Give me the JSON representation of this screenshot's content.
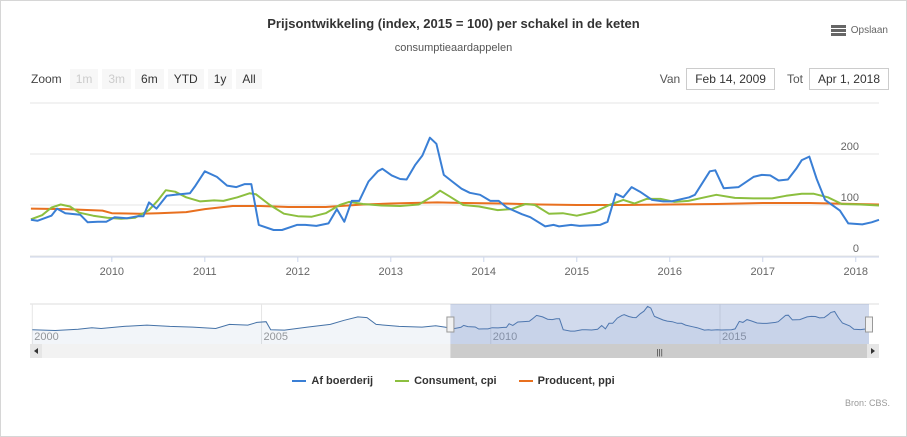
{
  "title": "Prijsontwikkeling (index, 2015 = 100) per schakel in de keten",
  "subtitle": "consumptieaardappelen",
  "export": {
    "label": "Opslaan",
    "icon": "menu-icon"
  },
  "zoom": {
    "label": "Zoom",
    "buttons": [
      {
        "label": "1m",
        "disabled": true
      },
      {
        "label": "3m",
        "disabled": true
      },
      {
        "label": "6m",
        "disabled": false
      },
      {
        "label": "YTD",
        "disabled": false
      },
      {
        "label": "1y",
        "disabled": false
      },
      {
        "label": "All",
        "disabled": false
      }
    ]
  },
  "range": {
    "from_label": "Van",
    "from": "Feb 14, 2009",
    "to_label": "Tot",
    "to": "Apr 1, 2018"
  },
  "source": "Bron: CBS.",
  "chart_data": {
    "type": "line",
    "title": "Prijsontwikkeling (index, 2015 = 100) per schakel in de keten",
    "subtitle": "consumptieaardappelen",
    "xlim": [
      2009.12,
      2018.25
    ],
    "ylim": [
      0,
      300
    ],
    "xticks": [
      "2010",
      "2011",
      "2012",
      "2013",
      "2014",
      "2015",
      "2016",
      "2017",
      "2018"
    ],
    "yticks": [
      "0",
      "100",
      "200"
    ],
    "grid": true,
    "legend_position": "bottom",
    "series": [
      {
        "name": "Af boerderij",
        "color": "#3a7fd5",
        "points": [
          [
            2009.13,
            71
          ],
          [
            2009.2,
            69
          ],
          [
            2009.35,
            79
          ],
          [
            2009.41,
            93
          ],
          [
            2009.5,
            84
          ],
          [
            2009.66,
            81
          ],
          [
            2009.74,
            66
          ],
          [
            2009.85,
            67
          ],
          [
            2009.94,
            67
          ],
          [
            2010.03,
            76
          ],
          [
            2010.16,
            74
          ],
          [
            2010.28,
            78
          ],
          [
            2010.34,
            78
          ],
          [
            2010.4,
            105
          ],
          [
            2010.48,
            93
          ],
          [
            2010.59,
            118
          ],
          [
            2010.68,
            120
          ],
          [
            2010.84,
            123
          ],
          [
            2010.9,
            138
          ],
          [
            2011.0,
            166
          ],
          [
            2011.13,
            155
          ],
          [
            2011.24,
            138
          ],
          [
            2011.34,
            135
          ],
          [
            2011.43,
            141
          ],
          [
            2011.5,
            141
          ],
          [
            2011.58,
            61
          ],
          [
            2011.74,
            51
          ],
          [
            2011.83,
            51
          ],
          [
            2011.99,
            61
          ],
          [
            2012.08,
            61
          ],
          [
            2012.2,
            59
          ],
          [
            2012.33,
            64
          ],
          [
            2012.42,
            92
          ],
          [
            2012.5,
            67
          ],
          [
            2012.58,
            108
          ],
          [
            2012.66,
            108
          ],
          [
            2012.76,
            146
          ],
          [
            2012.86,
            166
          ],
          [
            2012.91,
            171
          ],
          [
            2013.01,
            158
          ],
          [
            2013.1,
            151
          ],
          [
            2013.17,
            150
          ],
          [
            2013.26,
            178
          ],
          [
            2013.34,
            197
          ],
          [
            2013.42,
            232
          ],
          [
            2013.49,
            220
          ],
          [
            2013.57,
            159
          ],
          [
            2013.66,
            146
          ],
          [
            2013.76,
            132
          ],
          [
            2013.85,
            124
          ],
          [
            2013.96,
            120
          ],
          [
            2014.07,
            108
          ],
          [
            2014.16,
            108
          ],
          [
            2014.25,
            95
          ],
          [
            2014.41,
            82
          ],
          [
            2014.5,
            76
          ],
          [
            2014.66,
            58
          ],
          [
            2014.75,
            61
          ],
          [
            2014.81,
            58
          ],
          [
            2014.94,
            61
          ],
          [
            2015.03,
            59
          ],
          [
            2015.25,
            61
          ],
          [
            2015.33,
            67
          ],
          [
            2015.42,
            122
          ],
          [
            2015.5,
            115
          ],
          [
            2015.59,
            135
          ],
          [
            2015.68,
            126
          ],
          [
            2015.81,
            110
          ],
          [
            2015.93,
            107
          ],
          [
            2016.02,
            107
          ],
          [
            2016.21,
            115
          ],
          [
            2016.27,
            120
          ],
          [
            2016.43,
            166
          ],
          [
            2016.49,
            168
          ],
          [
            2016.58,
            133
          ],
          [
            2016.74,
            135
          ],
          [
            2016.9,
            155
          ],
          [
            2016.99,
            159
          ],
          [
            2017.08,
            158
          ],
          [
            2017.17,
            148
          ],
          [
            2017.27,
            150
          ],
          [
            2017.36,
            171
          ],
          [
            2017.42,
            188
          ],
          [
            2017.5,
            195
          ],
          [
            2017.58,
            151
          ],
          [
            2017.67,
            110
          ],
          [
            2017.83,
            89
          ],
          [
            2017.92,
            64
          ],
          [
            2018.07,
            62
          ],
          [
            2018.17,
            66
          ],
          [
            2018.25,
            71
          ]
        ]
      },
      {
        "name": "Consument, cpi",
        "color": "#8cbf3f",
        "points": [
          [
            2009.13,
            72
          ],
          [
            2009.25,
            80
          ],
          [
            2009.35,
            95
          ],
          [
            2009.45,
            101
          ],
          [
            2009.55,
            97
          ],
          [
            2009.65,
            85
          ],
          [
            2009.8,
            79
          ],
          [
            2009.95,
            75
          ],
          [
            2010.1,
            73
          ],
          [
            2010.25,
            75
          ],
          [
            2010.4,
            90
          ],
          [
            2010.5,
            110
          ],
          [
            2010.58,
            129
          ],
          [
            2010.68,
            126
          ],
          [
            2010.8,
            115
          ],
          [
            2010.95,
            107
          ],
          [
            2011.1,
            109
          ],
          [
            2011.2,
            108
          ],
          [
            2011.35,
            115
          ],
          [
            2011.48,
            123
          ],
          [
            2011.55,
            121
          ],
          [
            2011.7,
            100
          ],
          [
            2011.85,
            83
          ],
          [
            2012.0,
            78
          ],
          [
            2012.15,
            77
          ],
          [
            2012.3,
            84
          ],
          [
            2012.45,
            100
          ],
          [
            2012.55,
            106
          ],
          [
            2012.7,
            102
          ],
          [
            2012.9,
            99
          ],
          [
            2013.1,
            98
          ],
          [
            2013.3,
            101
          ],
          [
            2013.45,
            117
          ],
          [
            2013.53,
            128
          ],
          [
            2013.63,
            117
          ],
          [
            2013.78,
            100
          ],
          [
            2013.95,
            97
          ],
          [
            2014.15,
            90
          ],
          [
            2014.3,
            92
          ],
          [
            2014.45,
            102
          ],
          [
            2014.55,
            100
          ],
          [
            2014.7,
            83
          ],
          [
            2014.85,
            84
          ],
          [
            2015.0,
            79
          ],
          [
            2015.2,
            87
          ],
          [
            2015.35,
            100
          ],
          [
            2015.5,
            110
          ],
          [
            2015.62,
            103
          ],
          [
            2015.75,
            112
          ],
          [
            2015.9,
            112
          ],
          [
            2016.05,
            106
          ],
          [
            2016.2,
            108
          ],
          [
            2016.4,
            116
          ],
          [
            2016.5,
            120
          ],
          [
            2016.7,
            114
          ],
          [
            2016.9,
            113
          ],
          [
            2017.1,
            113
          ],
          [
            2017.25,
            118
          ],
          [
            2017.42,
            122
          ],
          [
            2017.55,
            122
          ],
          [
            2017.7,
            115
          ],
          [
            2017.85,
            102
          ],
          [
            2018.05,
            101
          ],
          [
            2018.25,
            99
          ]
        ]
      },
      {
        "name": "Producent, ppi",
        "color": "#e8701f",
        "points": [
          [
            2009.13,
            93
          ],
          [
            2009.5,
            92
          ],
          [
            2009.9,
            89
          ],
          [
            2010.0,
            84
          ],
          [
            2010.3,
            83
          ],
          [
            2010.5,
            84
          ],
          [
            2010.8,
            86
          ],
          [
            2011.0,
            92
          ],
          [
            2011.3,
            98
          ],
          [
            2011.6,
            98
          ],
          [
            2011.9,
            96
          ],
          [
            2012.3,
            96
          ],
          [
            2012.7,
            101
          ],
          [
            2013.0,
            103
          ],
          [
            2013.5,
            105
          ],
          [
            2013.8,
            104
          ],
          [
            2014.2,
            103
          ],
          [
            2014.6,
            101
          ],
          [
            2015.0,
            100
          ],
          [
            2015.5,
            100
          ],
          [
            2016.0,
            101
          ],
          [
            2016.5,
            102
          ],
          [
            2017.0,
            104
          ],
          [
            2017.5,
            104
          ],
          [
            2018.0,
            102
          ],
          [
            2018.25,
            101
          ]
        ]
      }
    ],
    "navigator": {
      "xlim": [
        1999.95,
        2018.25
      ],
      "xticks": [
        "2000",
        "2005",
        "2010",
        "2015"
      ],
      "selected": [
        "2009-02-14",
        "2018-04-01"
      ],
      "early_points": [
        [
          2000,
          60
        ],
        [
          2000.5,
          55
        ],
        [
          2001,
          65
        ],
        [
          2001.3,
          75
        ],
        [
          2001.5,
          70
        ],
        [
          2002,
          85
        ],
        [
          2002.5,
          95
        ],
        [
          2003,
          85
        ],
        [
          2003.5,
          80
        ],
        [
          2004,
          70
        ],
        [
          2004.3,
          100
        ],
        [
          2004.7,
          95
        ],
        [
          2004.9,
          115
        ],
        [
          2005.1,
          120
        ],
        [
          2005.2,
          60
        ],
        [
          2005.5,
          58
        ],
        [
          2006,
          80
        ],
        [
          2006.5,
          100
        ],
        [
          2006.8,
          130
        ],
        [
          2007.1,
          155
        ],
        [
          2007.3,
          150
        ],
        [
          2007.5,
          100
        ],
        [
          2008,
          85
        ],
        [
          2008.5,
          80
        ],
        [
          2008.8,
          90
        ],
        [
          2009.0,
          80
        ]
      ]
    }
  }
}
